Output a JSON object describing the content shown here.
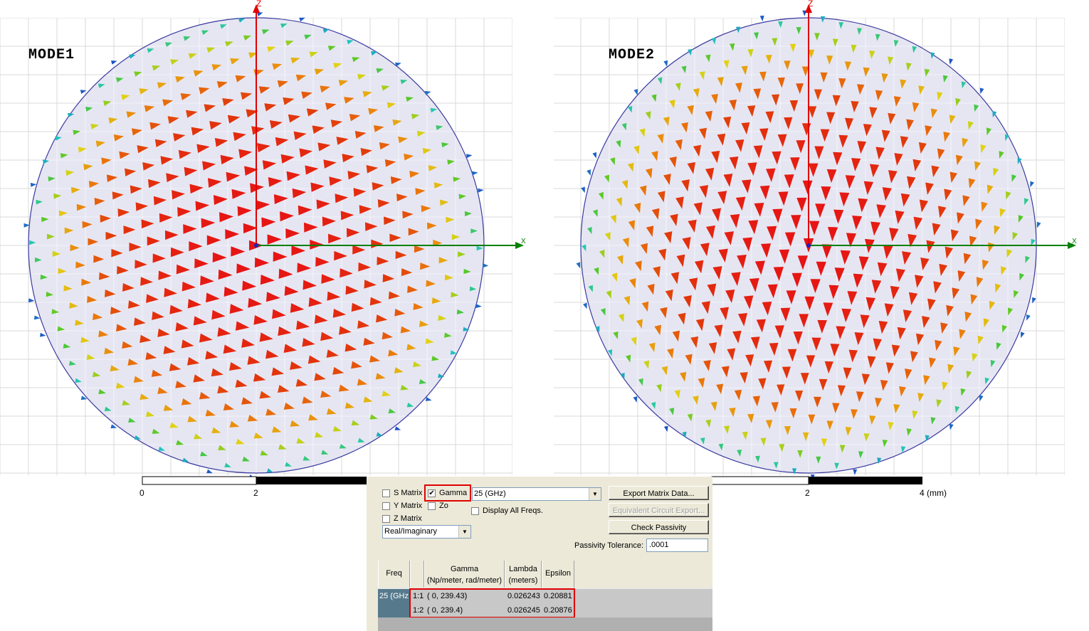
{
  "plots": [
    {
      "label": "MODE1",
      "axis_z": "Z",
      "axis_x": "X",
      "pattern": "uniform-horizontal"
    },
    {
      "label": "MODE2",
      "axis_z": "Z",
      "axis_x": "X",
      "pattern": "uniform-vertical"
    }
  ],
  "scale_bar_left": {
    "ticks": [
      "0",
      "2"
    ]
  },
  "scale_bar_right": {
    "ticks": [
      "2",
      "4 (mm)"
    ]
  },
  "colors": {
    "disk_fill": "#e6e6f2",
    "disk_edge": "#3a3aa0",
    "grid": "#d8d8d8",
    "axis_z": "#e00000",
    "axis_x": "#008000",
    "highlight": "#e00000"
  },
  "dialog": {
    "s_matrix": {
      "label": "S Matrix",
      "checked": false
    },
    "gamma": {
      "label": "Gamma",
      "checked": true
    },
    "y_matrix": {
      "label": "Y Matrix",
      "checked": false
    },
    "zo": {
      "label": "Zo",
      "checked": false
    },
    "z_matrix": {
      "label": "Z Matrix",
      "checked": false
    },
    "freq_select": "25 (GHz)",
    "display_all_freqs": {
      "label": "Display All Freqs.",
      "checked": false
    },
    "format_select": "Real/Imaginary",
    "export_button": "Export Matrix Data...",
    "equiv_button": "Equivalent Circuit Export...",
    "passivity_button": "Check Passivity",
    "tolerance_label": "Passivity Tolerance:",
    "tolerance_value": ".0001",
    "table": {
      "headers": {
        "freq": "Freq",
        "gamma": "Gamma",
        "gamma_sub": "(Np/meter, rad/meter)",
        "lambda": "Lambda",
        "lambda_sub": "(meters)",
        "epsilon": "Epsilon"
      },
      "freq_cell": "25 (GHz",
      "rows": [
        {
          "mode": "1:1",
          "gamma": "( 0, 239.43)",
          "lambda": "0.026243",
          "epsilon": "0.20881"
        },
        {
          "mode": "1:2",
          "gamma": "( 0, 239.4)",
          "lambda": "0.026245",
          "epsilon": "0.20876"
        }
      ]
    }
  }
}
